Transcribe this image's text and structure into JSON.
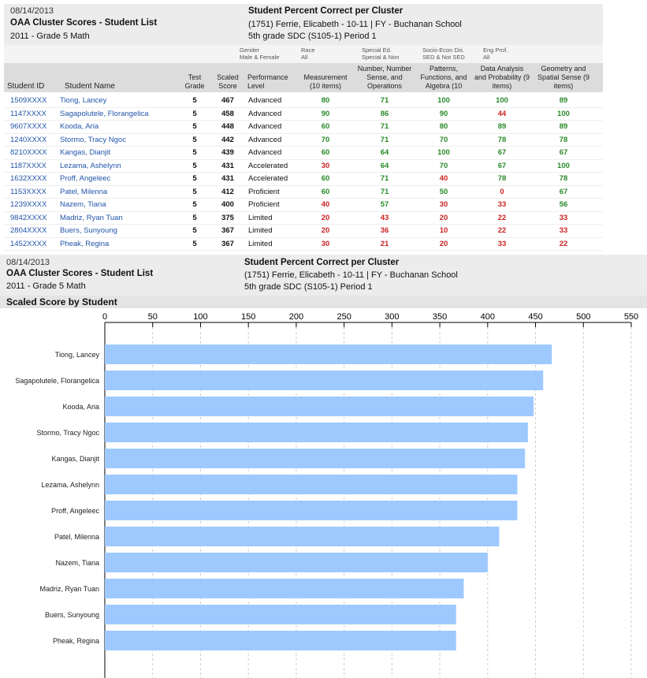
{
  "report": {
    "date": "08/14/2013",
    "title": "OAA Cluster Scores - Student List",
    "subtitle": "2011 - Grade 5 Math",
    "right_title": "Student Percent Correct per Cluster",
    "teacher": "(1751) Ferrie, Elicabeth  - 10-11 | FY - Buchanan School",
    "section": "5th grade SDC (S105-1) Period 1"
  },
  "filters": [
    {
      "label": "Gender",
      "value": "Male & Female"
    },
    {
      "label": "Race",
      "value": "All"
    },
    {
      "label": "Special Ed.",
      "value": "Special & Non"
    },
    {
      "label": "Socio-Econ Dis.",
      "value": "SED & Not SED"
    },
    {
      "label": "Eng Prof.",
      "value": "All"
    }
  ],
  "columns": {
    "student_id": "Student ID",
    "student_name": "Student Name",
    "test_grade": "Test Grade",
    "scaled_score": "Scaled Score",
    "performance": "Performance Level",
    "measurement": "Measurement (10 items)",
    "number_sense": "Number, Number Sense, and Operations",
    "patterns": "Patterns, Functions, and Algebra (10",
    "data_analysis": "Data Analysis and Probability (9 items)",
    "geometry": "Geometry and Spatial Sense (9 items)"
  },
  "students": [
    {
      "id": "1509XXXX",
      "name": "Tiong, Lancey",
      "grade": "5",
      "score": "467",
      "level": "Advanced",
      "m": "80",
      "n": "71",
      "p": "100",
      "d": "100",
      "g": "89"
    },
    {
      "id": "1147XXXX",
      "name": "Sagapolutele, Florangelica",
      "grade": "5",
      "score": "458",
      "level": "Advanced",
      "m": "90",
      "n": "86",
      "p": "90",
      "d": "44",
      "g": "100"
    },
    {
      "id": "9607XXXX",
      "name": "Kooda, Aria",
      "grade": "5",
      "score": "448",
      "level": "Advanced",
      "m": "60",
      "n": "71",
      "p": "80",
      "d": "89",
      "g": "89"
    },
    {
      "id": "1240XXXX",
      "name": "Stormo, Tracy Ngoc",
      "grade": "5",
      "score": "442",
      "level": "Advanced",
      "m": "70",
      "n": "71",
      "p": "70",
      "d": "78",
      "g": "78"
    },
    {
      "id": "8210XXXX",
      "name": "Kangas, Dianjit",
      "grade": "5",
      "score": "439",
      "level": "Advanced",
      "m": "60",
      "n": "64",
      "p": "100",
      "d": "67",
      "g": "67"
    },
    {
      "id": "1187XXXX",
      "name": "Lezama, Ashelynn",
      "grade": "5",
      "score": "431",
      "level": "Accelerated",
      "m": "30",
      "n": "64",
      "p": "70",
      "d": "67",
      "g": "100"
    },
    {
      "id": "1632XXXX",
      "name": "Proff, Angeleec",
      "grade": "5",
      "score": "431",
      "level": "Accelerated",
      "m": "60",
      "n": "71",
      "p": "40",
      "d": "78",
      "g": "78"
    },
    {
      "id": "1153XXXX",
      "name": "Patel, Milenna",
      "grade": "5",
      "score": "412",
      "level": "Proficient",
      "m": "60",
      "n": "71",
      "p": "50",
      "d": "0",
      "g": "67"
    },
    {
      "id": "1239XXXX",
      "name": "Nazem, Tiana",
      "grade": "5",
      "score": "400",
      "level": "Proficient",
      "m": "40",
      "n": "57",
      "p": "30",
      "d": "33",
      "g": "56"
    },
    {
      "id": "9842XXXX",
      "name": "Madriz, Ryan Tuan",
      "grade": "5",
      "score": "375",
      "level": "Limited",
      "m": "20",
      "n": "43",
      "p": "20",
      "d": "22",
      "g": "33"
    },
    {
      "id": "2804XXXX",
      "name": "Buers, Sunyoung",
      "grade": "5",
      "score": "367",
      "level": "Limited",
      "m": "20",
      "n": "36",
      "p": "10",
      "d": "22",
      "g": "33"
    },
    {
      "id": "1452XXXX",
      "name": "Pheak, Regina",
      "grade": "5",
      "score": "367",
      "level": "Limited",
      "m": "30",
      "n": "21",
      "p": "20",
      "d": "33",
      "g": "22"
    }
  ],
  "colors": {
    "pass": "#2a8a2a",
    "fail": "#cc2222",
    "bar": "#9ec9ff",
    "link": "#2255aa"
  },
  "chart_data": {
    "type": "bar",
    "orientation": "horizontal",
    "title": "Scaled Score by Student",
    "categories": [
      "Tiong, Lancey",
      "Sagapolutele, Florangelica",
      "Kooda, Aria",
      "Stormo, Tracy Ngoc",
      "Kangas, Dianjit",
      "Lezama, Ashelynn",
      "Proff, Angeleec",
      "Patel, Milenna",
      "Nazem, Tiana",
      "Madriz, Ryan Tuan",
      "Buers, Sunyoung",
      "Pheak, Regina"
    ],
    "values": [
      467,
      458,
      448,
      442,
      439,
      431,
      431,
      412,
      400,
      375,
      367,
      367
    ],
    "xlim": [
      0,
      550
    ],
    "xticks": [
      0,
      50,
      100,
      150,
      200,
      250,
      300,
      350,
      400,
      450,
      500,
      550
    ],
    "grid": true
  }
}
